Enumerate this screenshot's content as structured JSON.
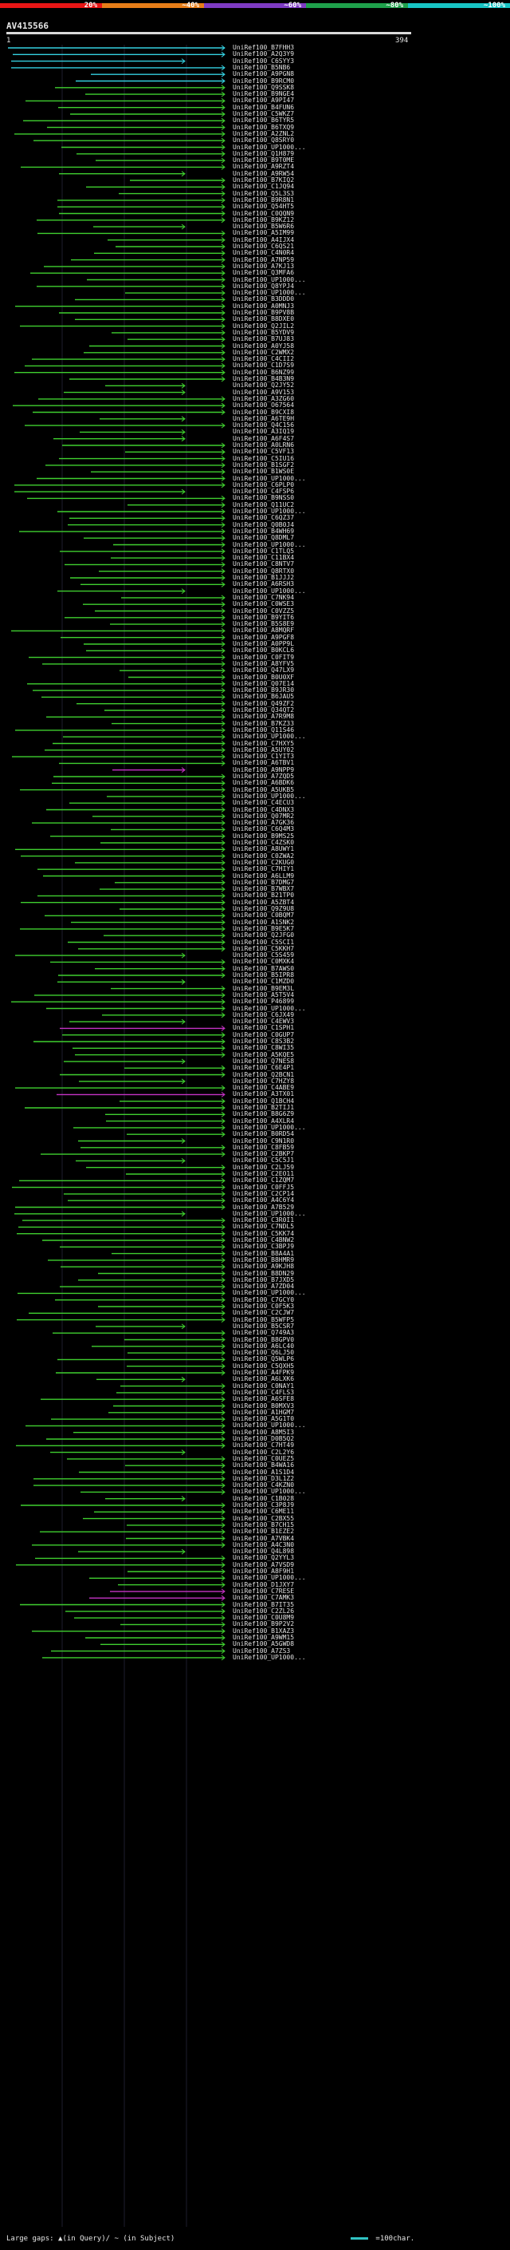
{
  "scale": {
    "ticks": [
      "20%",
      "~40%",
      "~60%",
      "~80%",
      "~100%"
    ],
    "colors": [
      "#e81515",
      "#e67d18",
      "#7e3bc3",
      "#1ea04b",
      "#17c4c4"
    ]
  },
  "query": {
    "name": "AV415566",
    "start": "1",
    "length": "394"
  },
  "hit_colors": {
    "cyan": "#34d0e0",
    "green": "#3fcf2f",
    "magenta": "#c533c5",
    "white": "#e6e6e6"
  },
  "hits": [
    "UniRef100_B7FHH3",
    "UniRef100_A2Q3Y9",
    "UniRef100_C6SYY3",
    "UniRef100_B5NB6",
    "UniRef100_A9PGN8",
    "UniRef100_B9RCM0",
    "UniRef100_Q9SSK8",
    "UniRef100_B9NGE4",
    "UniRef100_A9PI47",
    "UniRef100_B4FUN6",
    "UniRef100_C5WKZ7",
    "UniRef100_B6TYR5",
    "UniRef100_B6TXQ9",
    "UniRef100_A2ZNL2",
    "UniRef100_Q8SRY0",
    "UniRef100_UP1000...",
    "UniRef100_Q1H879",
    "UniRef100_B9T0ME",
    "UniRef100_A9RZT4",
    "UniRef100_A9RW54",
    "UniRef100_B7KIQ2",
    "UniRef100_C1JQ94",
    "UniRef100_Q5L3S3",
    "UniRef100_B9R8N1",
    "UniRef100_Q54HT5",
    "UniRef100_C0QQN9",
    "UniRef100_B9KZ12",
    "UniRef100_B5W6R6",
    "UniRef100_A5IM99",
    "UniRef100_A4IJX4",
    "UniRef100_C6QS21",
    "UniRef100_C4N0R4",
    "UniRef100_A7NP59",
    "UniRef100_A7KJ13",
    "UniRef100_Q3MFA6",
    "UniRef100_UP1000...",
    "UniRef100_Q8YPJ4",
    "UniRef100_UP1000...",
    "UniRef100_B3DDD0",
    "UniRef100_A0MNJ3",
    "UniRef100_B9PV8B",
    "UniRef100_B8DXE0",
    "UniRef100_Q2JIL2",
    "UniRef100_B5YDV9",
    "UniRef100_B7UJ83",
    "UniRef100_A0YJ58",
    "UniRef100_C2WMX2",
    "UniRef100_C4CII2",
    "UniRef100_C1D7S9",
    "UniRef100_B6NZ99",
    "UniRef100_B4B3N9",
    "UniRef100_Q2JY52",
    "UniRef100_A9V153",
    "UniRef100_A3ZG60",
    "UniRef100_O67564",
    "UniRef100_B9CXI8",
    "UniRef100_A6TE9H",
    "UniRef100_Q4C156",
    "UniRef100_A3IQ19",
    "UniRef100_A6F4S7",
    "UniRef100_A0LRN6",
    "UniRef100_C5VF13",
    "UniRef100_C5IU16",
    "UniRef100_B1SGF2",
    "UniRef100_B1WS0E",
    "UniRef100_UP1000...",
    "UniRef100_C6PLP0",
    "UniRef100_C4FSP6",
    "UniRef100_B9NSS0",
    "UniRef100_Q11UC2",
    "UniRef100_UP1000...",
    "UniRef100_C6QZ37",
    "UniRef100_Q0B0J4",
    "UniRef100_B4WH69",
    "UniRef100_Q8DML7",
    "UniRef100_UP1000...",
    "UniRef100_C1TLQ5",
    "UniRef100_C11BX4",
    "UniRef100_C8NTV7",
    "UniRef100_Q8RTX0",
    "UniRef100_B1JJJ2",
    "UniRef100_A6RSH3",
    "UniRef100_UP1000...",
    "UniRef100_C7NK94",
    "UniRef100_C0WSE3",
    "UniRef100_C0VZZ5",
    "UniRef100_B9YIT6",
    "UniRef100_B5S8E9",
    "UniRef100_A8MQRF",
    "UniRef100_A9PGF8",
    "UniRef100_A0PP9L",
    "UniRef100_B0KCL6",
    "UniRef100_C0FIT9",
    "UniRef100_A8YFV5",
    "UniRef100_Q47LX9",
    "UniRef100_B0U0XF",
    "UniRef100_Q07E14",
    "UniRef100_B9JR30",
    "UniRef100_B6JAU5",
    "UniRef100_Q49ZF2",
    "UniRef100_Q34QT2",
    "UniRef100_A7R9M8",
    "UniRef100_B7KZ33",
    "UniRef100_Q11S46",
    "UniRef100_UP1000...",
    "UniRef100_C7HXY5",
    "UniRef100_A5UY02",
    "UniRef100_C1YIT3",
    "UniRef100_A6TBV1",
    "UniRef100_A9NPP9",
    "UniRef100_A7ZQD5",
    "UniRef100_A6BDK6",
    "UniRef100_A5UKB5",
    "UniRef100_UP1000...",
    "UniRef100_C4ECU3",
    "UniRef100_C4DNX3",
    "UniRef100_Q07MR2",
    "UniRef100_A7GK36",
    "UniRef100_C6Q4M3",
    "UniRef100_B9MS25",
    "UniRef100_C4ZSK0",
    "UniRef100_A8UWY1",
    "UniRef100_C0ZWA2",
    "UniRef100_C2KUG0",
    "UniRef100_C7HIY1",
    "UniRef100_A6LLM9",
    "UniRef100_B7DMG7",
    "UniRef100_B7WBX7",
    "UniRef100_B21TP0",
    "UniRef100_A5ZBT4",
    "UniRef100_Q9Z9U8",
    "UniRef100_C0BQM7",
    "UniRef100_A1SNK2",
    "UniRef100_B9E5K7",
    "UniRef100_Q2JFG0",
    "UniRef100_C5SCI1",
    "UniRef100_C5KKH7",
    "UniRef100_C5S459",
    "UniRef100_C0MXK4",
    "UniRef100_B7AWS0",
    "UniRef100_B5IPR8",
    "UniRef100_C1MZD0",
    "UniRef100_B9EM3L",
    "UniRef100_A5T5V4",
    "UniRef100_P46899",
    "UniRef100_UP1000...",
    "UniRef100_C6JX49",
    "UniRef100_C4EWV3",
    "UniRef100_C1SPH1",
    "UniRef100_C0GUP7",
    "UniRef100_C8S3B2",
    "UniRef100_C8WI35",
    "UniRef100_A5KQE5",
    "UniRef100_Q7NES8",
    "UniRef100_C6E4P1",
    "UniRef100_Q2BCN1",
    "UniRef100_C7HZY8",
    "UniRef100_C4ABE9",
    "UniRef100_A3TX01",
    "UniRef100_Q1BCH4",
    "UniRef100_B2TIJ1",
    "UniRef100_B8G6Z9",
    "UniRef100_A4XLR4",
    "UniRef100_UP1000...",
    "UniRef100_B0RD54",
    "UniRef100_C9N1R0",
    "UniRef100_C8FB59",
    "UniRef100_C2BKP7",
    "UniRef100_C5C5J1",
    "UniRef100_C2LJ59",
    "UniRef100_C2EO11",
    "UniRef100_C1ZQM7",
    "UniRef100_C0FFJ5",
    "UniRef100_C2CP14",
    "UniRef100_A4C6Y4",
    "UniRef100_A7B529",
    "UniRef100_UP1000...",
    "UniRef100_C3R0I1",
    "UniRef100_C7NDL5",
    "UniRef100_C5KK74",
    "UniRef100_C4BNW2",
    "UniRef100_C3BPJ9",
    "UniRef100_B8A4A1",
    "UniRef100_B8HMR9",
    "UniRef100_A9KJH8",
    "UniRef100_B8DN29",
    "UniRef100_B7JXD5",
    "UniRef100_A7ZD04",
    "UniRef100_UP1000...",
    "UniRef100_C7GCY0",
    "UniRef100_C0F5K3",
    "UniRef100_C2CJW7",
    "UniRef100_B5WFP5",
    "UniRef100_B5CSR7",
    "UniRef100_Q749A3",
    "UniRef100_B8GPV0",
    "UniRef100_A6LC40",
    "UniRef100_Q6LJ50",
    "UniRef100_Q5WLP6",
    "UniRef100_C5QXH5",
    "UniRef100_A4FPK9",
    "UniRef100_A6LXK6",
    "UniRef100_C0NAY1",
    "UniRef100_C4FLS3",
    "UniRef100_A6SFE8",
    "UniRef100_B0MXV3",
    "UniRef100_A1HGM7",
    "UniRef100_A5G1T0",
    "UniRef100_UP1000...",
    "UniRef100_A8M5I3",
    "UniRef100_D0B5Q2",
    "UniRef100_C7HT49",
    "UniRef100_C2L2Y6",
    "UniRef100_C0UEZ5",
    "UniRef100_B4WA16",
    "UniRef100_A1S1D4",
    "UniRef100_D3L1Z2",
    "UniRef100_C4KZN0",
    "UniRef100_UP1000...",
    "UniRef100_C1B028",
    "UniRef100_C3P8J9",
    "UniRef100_C6ME11",
    "UniRef100_C2BX55",
    "UniRef100_B7CH15",
    "UniRef100_B1EZE2",
    "UniRef100_A7VBK4",
    "UniRef100_A4C3N0",
    "UniRef100_Q4L898",
    "UniRef100_Q2YYL3",
    "UniRef100_A7VSD9",
    "UniRef100_A8F9H1",
    "UniRef100_UP1000...",
    "UniRef100_D1JXY7",
    "UniRef100_C7RESE",
    "UniRef100_C7AMK3",
    "UniRef100_B7IT35",
    "UniRef100_C2ZL26",
    "UniRef100_C0U8M9",
    "UniRef100_B9P2V2",
    "UniRef100_B1XAZ3",
    "UniRef100_A9WM15",
    "UniRef100_A5GWD8",
    "UniRef100_A7ZS3",
    "UniRef100_UP1000..."
  ],
  "footer": {
    "large_gaps": "Large gaps:",
    "query_mark": "▲(in Query)/",
    "subject_mark": "~ (in Subject)"
  },
  "legend": {
    "text": "=100char."
  }
}
